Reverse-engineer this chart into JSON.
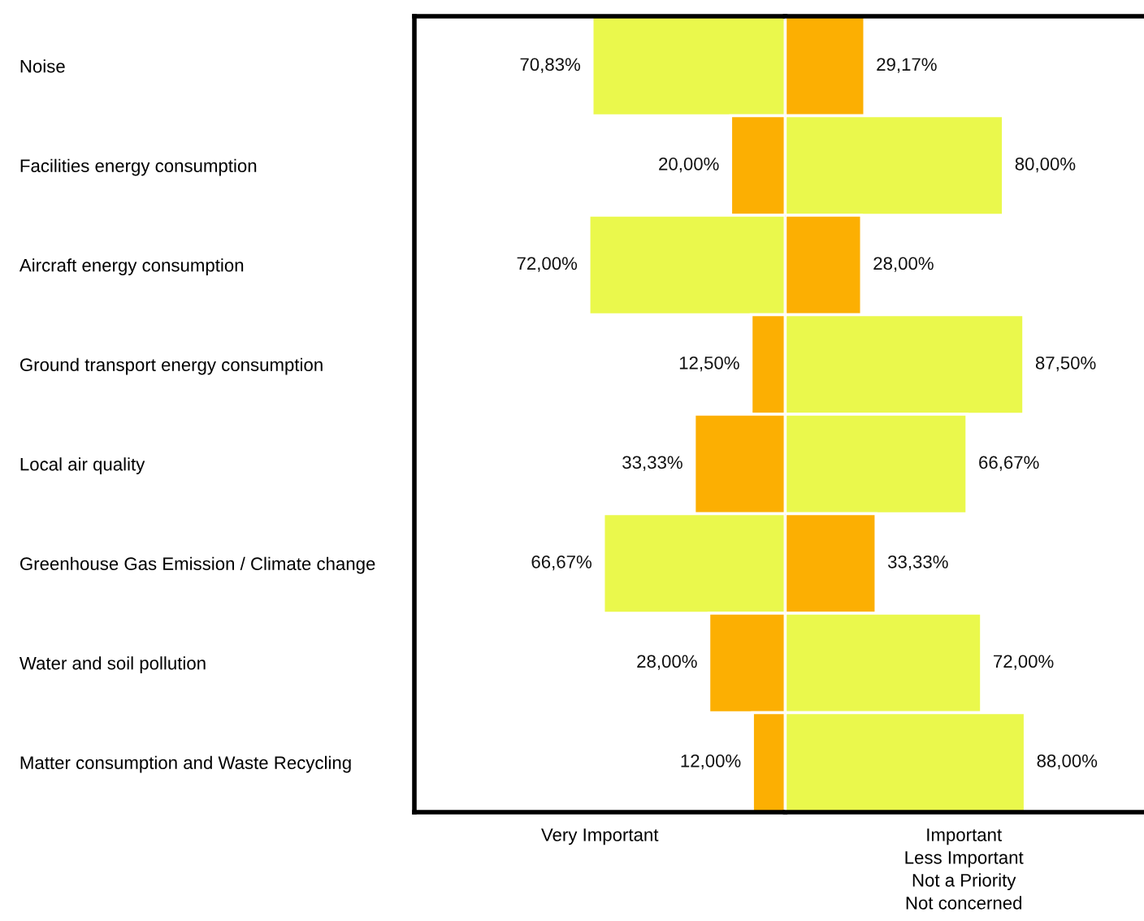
{
  "chart_data": [
    {
      "type": "bar",
      "orientation": "horizontal",
      "xlabel": "Very Important",
      "categories": [
        "Noise",
        "Facilities energy consumption",
        "Aircraft energy consumption",
        "Ground transport energy consumption",
        "Local air quality",
        "Greenhouse Gas Emission / Climate change",
        "Water and soil pollution",
        "Matter consumption and Waste Recycling"
      ],
      "values": [
        70.83,
        20.0,
        72.0,
        12.5,
        33.33,
        66.67,
        28.0,
        12.0
      ],
      "colors": [
        "#eaf84c",
        "#fcaf02",
        "#eaf84c",
        "#fcaf02",
        "#fcaf02",
        "#eaf84c",
        "#fcaf02",
        "#fcaf02"
      ],
      "value_labels": [
        "70,83%",
        "20,00%",
        "72,00%",
        "12,50%",
        "33,33%",
        "66,67%",
        "28,00%",
        "12,00%"
      ],
      "xlim": [
        136,
        0
      ],
      "tick_labels": "y",
      "grid": false,
      "legend": false
    },
    {
      "type": "bar",
      "orientation": "horizontal",
      "xlabel": "Important\nLess Important\nNot a Priority\nNot concerned",
      "categories": [
        null,
        null,
        null,
        null,
        null,
        null,
        null,
        null
      ],
      "values": [
        29.17,
        80.0,
        28.0,
        87.5,
        66.67,
        33.33,
        72.0,
        88.0
      ],
      "colors": [
        "#fcaf02",
        "#eaf84c",
        "#fcaf02",
        "#eaf84c",
        "#eaf84c",
        "#fcaf02",
        "#eaf84c",
        "#eaf84c"
      ],
      "value_labels": [
        "29,17%",
        "80,00%",
        "28,00%",
        "87,50%",
        "66,67%",
        "33,33%",
        "72,00%",
        "88,00%"
      ],
      "xlim": [
        0,
        131
      ],
      "tick_labels": false,
      "grid": false,
      "legend": false
    }
  ]
}
